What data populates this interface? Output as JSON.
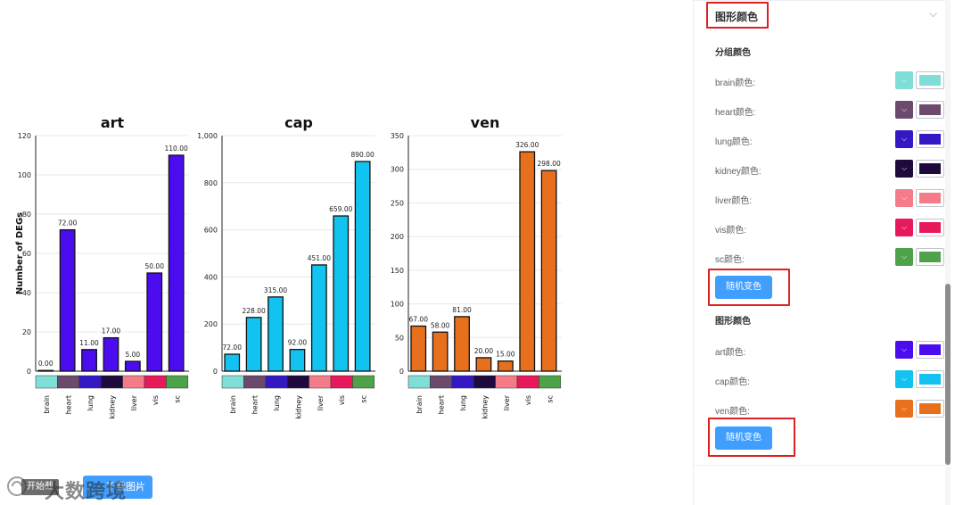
{
  "chart_data": [
    {
      "type": "bar",
      "title": "art",
      "ylabel": "Number of DEGs",
      "categories": [
        "brain",
        "heart",
        "lung",
        "kidney",
        "liver",
        "vis",
        "sc"
      ],
      "values": [
        0,
        72,
        11,
        17,
        5,
        50,
        110
      ],
      "value_labels": [
        "0.00",
        "72.00",
        "11.00",
        "17.00",
        "5.00",
        "50.00",
        "110.00"
      ],
      "yticks": [
        "0",
        "20",
        "40",
        "60",
        "80",
        "100",
        "120"
      ],
      "ylim": [
        0,
        120
      ],
      "grid": true,
      "bar_color": "#4b0cf0"
    },
    {
      "type": "bar",
      "title": "cap",
      "ylabel": "",
      "categories": [
        "brain",
        "heart",
        "lung",
        "kidney",
        "liver",
        "vis",
        "sc"
      ],
      "values": [
        72,
        228,
        315,
        92,
        451,
        659,
        890
      ],
      "value_labels": [
        "72.00",
        "228.00",
        "315.00",
        "92.00",
        "451.00",
        "659.00",
        "890.00"
      ],
      "yticks": [
        "0",
        "200",
        "400",
        "600",
        "800",
        "1,000"
      ],
      "ylim": [
        0,
        1000
      ],
      "grid": true,
      "bar_color": "#12c2f0"
    },
    {
      "type": "bar",
      "title": "ven",
      "ylabel": "",
      "categories": [
        "brain",
        "heart",
        "lung",
        "kidney",
        "liver",
        "vis",
        "sc"
      ],
      "values": [
        67,
        58,
        81,
        20,
        15,
        326,
        298
      ],
      "value_labels": [
        "67.00",
        "58.00",
        "81.00",
        "20.00",
        "15.00",
        "326.00",
        "298.00"
      ],
      "yticks": [
        "0",
        "50",
        "100",
        "150",
        "200",
        "250",
        "300",
        "350"
      ],
      "ylim": [
        0,
        350
      ],
      "grid": true,
      "bar_color": "#e8701c"
    }
  ],
  "group_colors": [
    "#7fded8",
    "#6b4a6e",
    "#3418c4",
    "#1e0a3c",
    "#f47c88",
    "#e8195a",
    "#4ea24a"
  ],
  "panel": {
    "collapse_title": "图形颜色",
    "group_section_title": "分组颜色",
    "group_rows": [
      {
        "label": "brain颜色:",
        "color": "#7fded8"
      },
      {
        "label": "heart颜色:",
        "color": "#6b4a6e"
      },
      {
        "label": "lung颜色:",
        "color": "#3418c4"
      },
      {
        "label": "kidney颜色:",
        "color": "#1e0a3c"
      },
      {
        "label": "liver颜色:",
        "color": "#f47c88"
      },
      {
        "label": "vis颜色:",
        "color": "#e8195a"
      },
      {
        "label": "sc颜色:",
        "color": "#4ea24a"
      }
    ],
    "random_button_1": "随机变色",
    "graph_section_title": "图形颜色",
    "graph_rows": [
      {
        "label": "art颜色:",
        "color": "#4b0cf0"
      },
      {
        "label": "cap颜色:",
        "color": "#12c2f0"
      },
      {
        "label": "ven颜色:",
        "color": "#e8701c"
      }
    ],
    "random_button_2": "随机变色"
  },
  "footer": {
    "start_badge": "开始截",
    "watermark": "大数跨境",
    "download_button": "下载图片"
  }
}
